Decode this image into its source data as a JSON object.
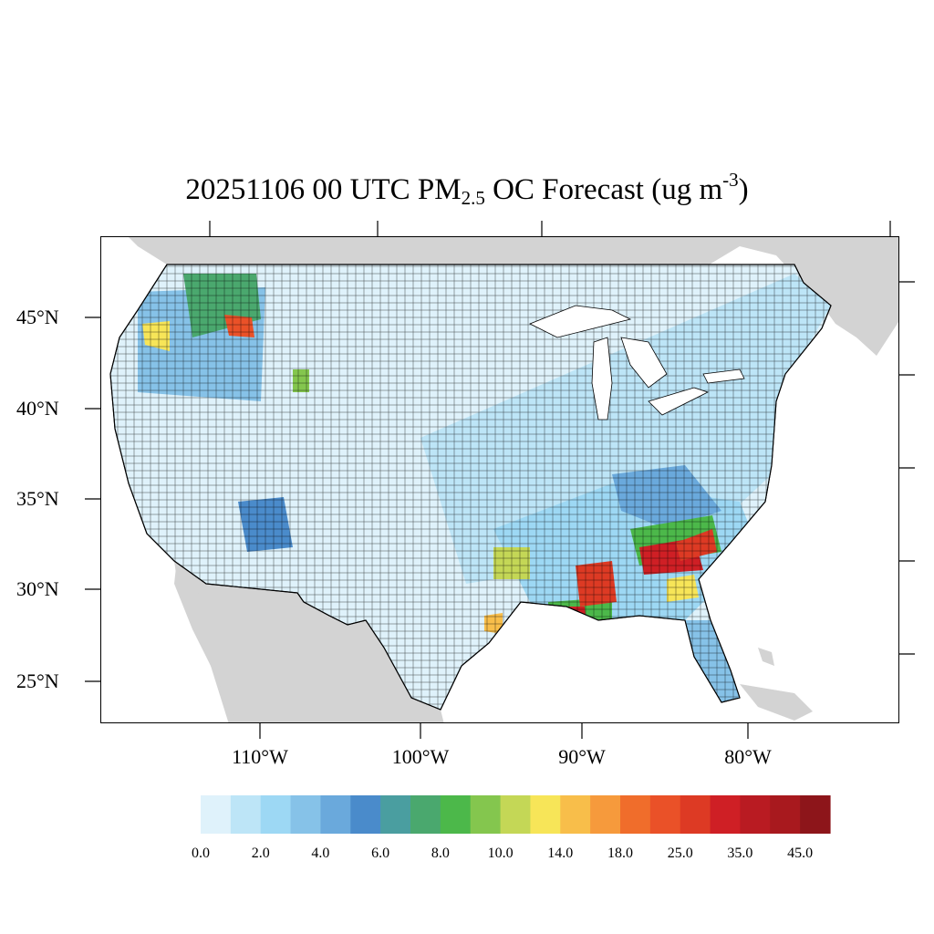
{
  "title": {
    "prefix": "20251106 00 UTC PM",
    "subscript": "2.5",
    "middle": " OC Forecast (ug m",
    "superscript": "-3",
    "suffix": ")"
  },
  "axes": {
    "lat_labels": [
      "45°N",
      "40°N",
      "35°N",
      "30°N",
      "25°N"
    ],
    "lon_labels": [
      "110°W",
      "100°W",
      "90°W",
      "80°W"
    ]
  },
  "colorbar": {
    "labels": [
      "0.0",
      "2.0",
      "4.0",
      "6.0",
      "8.0",
      "10.0",
      "14.0",
      "18.0",
      "25.0",
      "35.0",
      "45.0"
    ],
    "colors": [
      "#dff2fb",
      "#bde5f7",
      "#9dd8f4",
      "#86c2e8",
      "#6aa9dc",
      "#4a8bcb",
      "#4a9ea0",
      "#4aa86e",
      "#4cb84a",
      "#84c64e",
      "#c4d756",
      "#f7e558",
      "#f8be4a",
      "#f69a3c",
      "#f06d2b",
      "#ea5128",
      "#dd3a24",
      "#cf1f25",
      "#b91b22",
      "#a8191e",
      "#8d151a"
    ]
  },
  "map": {
    "land_color": "#d3d3d3",
    "ocean_color": "#ffffff",
    "border_color": "#000000"
  }
}
